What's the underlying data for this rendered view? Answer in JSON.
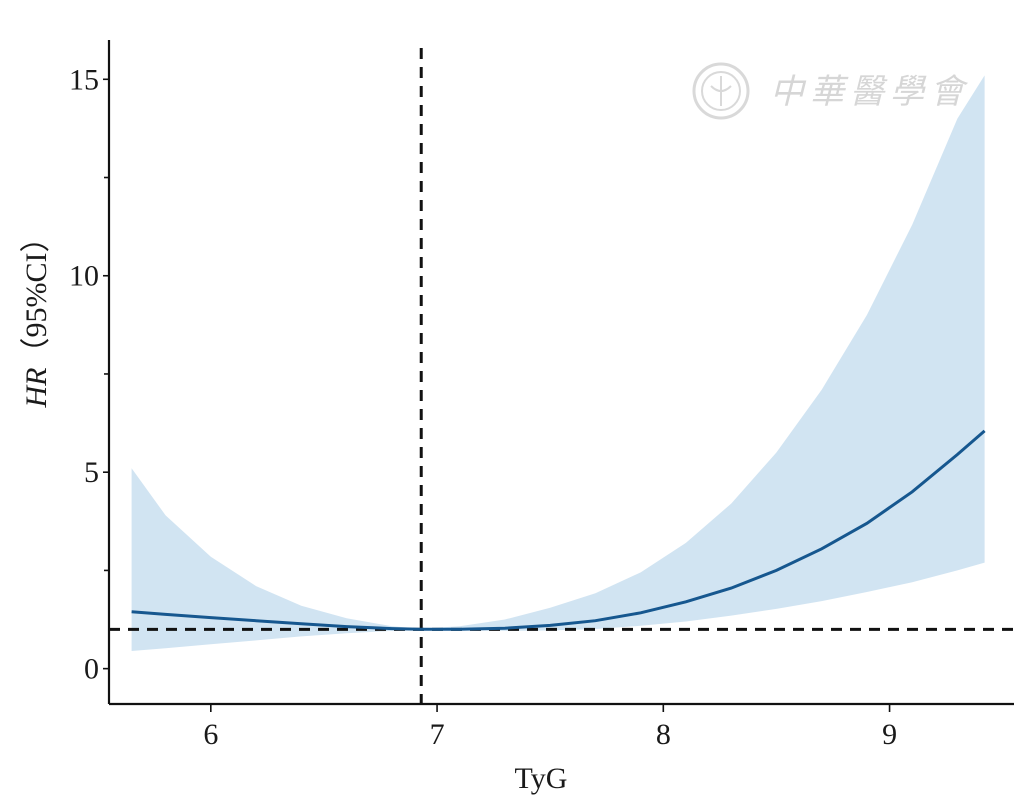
{
  "chart_data": {
    "type": "area",
    "xlabel": "TyG",
    "ylabel_italic": "HR",
    "ylabel_rest": "（95%CI）",
    "xlim": [
      5.55,
      9.55
    ],
    "ylim": [
      -0.9,
      16
    ],
    "x_ticks": [
      {
        "value": 6,
        "label": "6"
      },
      {
        "value": 7,
        "label": "7"
      },
      {
        "value": 8,
        "label": "8"
      },
      {
        "value": 9,
        "label": "9"
      }
    ],
    "y_ticks": [
      {
        "value": 0,
        "label": "0"
      },
      {
        "value": 5,
        "label": "5"
      },
      {
        "value": 10,
        "label": "10"
      },
      {
        "value": 15,
        "label": "15"
      }
    ],
    "y_minor_ticks": [
      2.5,
      7.5,
      12.5
    ],
    "ref_x": 6.93,
    "ref_y": 1,
    "series": [
      {
        "color": "#16578f",
        "band_color": "#cfe3f1",
        "x": [
          5.65,
          5.8,
          6.0,
          6.2,
          6.4,
          6.6,
          6.8,
          6.93,
          7.1,
          7.3,
          7.5,
          7.7,
          7.9,
          8.1,
          8.3,
          8.5,
          8.7,
          8.9,
          9.1,
          9.3,
          9.42
        ],
        "hr": [
          1.45,
          1.38,
          1.3,
          1.22,
          1.14,
          1.07,
          1.02,
          1.0,
          1.0,
          1.03,
          1.1,
          1.22,
          1.42,
          1.7,
          2.05,
          2.5,
          3.05,
          3.7,
          4.5,
          5.45,
          6.05
        ],
        "lower": [
          0.45,
          0.52,
          0.62,
          0.72,
          0.82,
          0.9,
          0.96,
          1.0,
          0.98,
          0.96,
          0.97,
          1.01,
          1.09,
          1.2,
          1.35,
          1.52,
          1.72,
          1.95,
          2.2,
          2.5,
          2.7
        ],
        "upper": [
          5.1,
          3.9,
          2.85,
          2.1,
          1.6,
          1.28,
          1.08,
          1.02,
          1.08,
          1.25,
          1.55,
          1.92,
          2.45,
          3.2,
          4.2,
          5.5,
          7.1,
          9.0,
          11.3,
          14.0,
          15.1
        ]
      }
    ]
  },
  "watermark": {
    "text": "中華醫學會",
    "color": "#d6d6d6"
  }
}
